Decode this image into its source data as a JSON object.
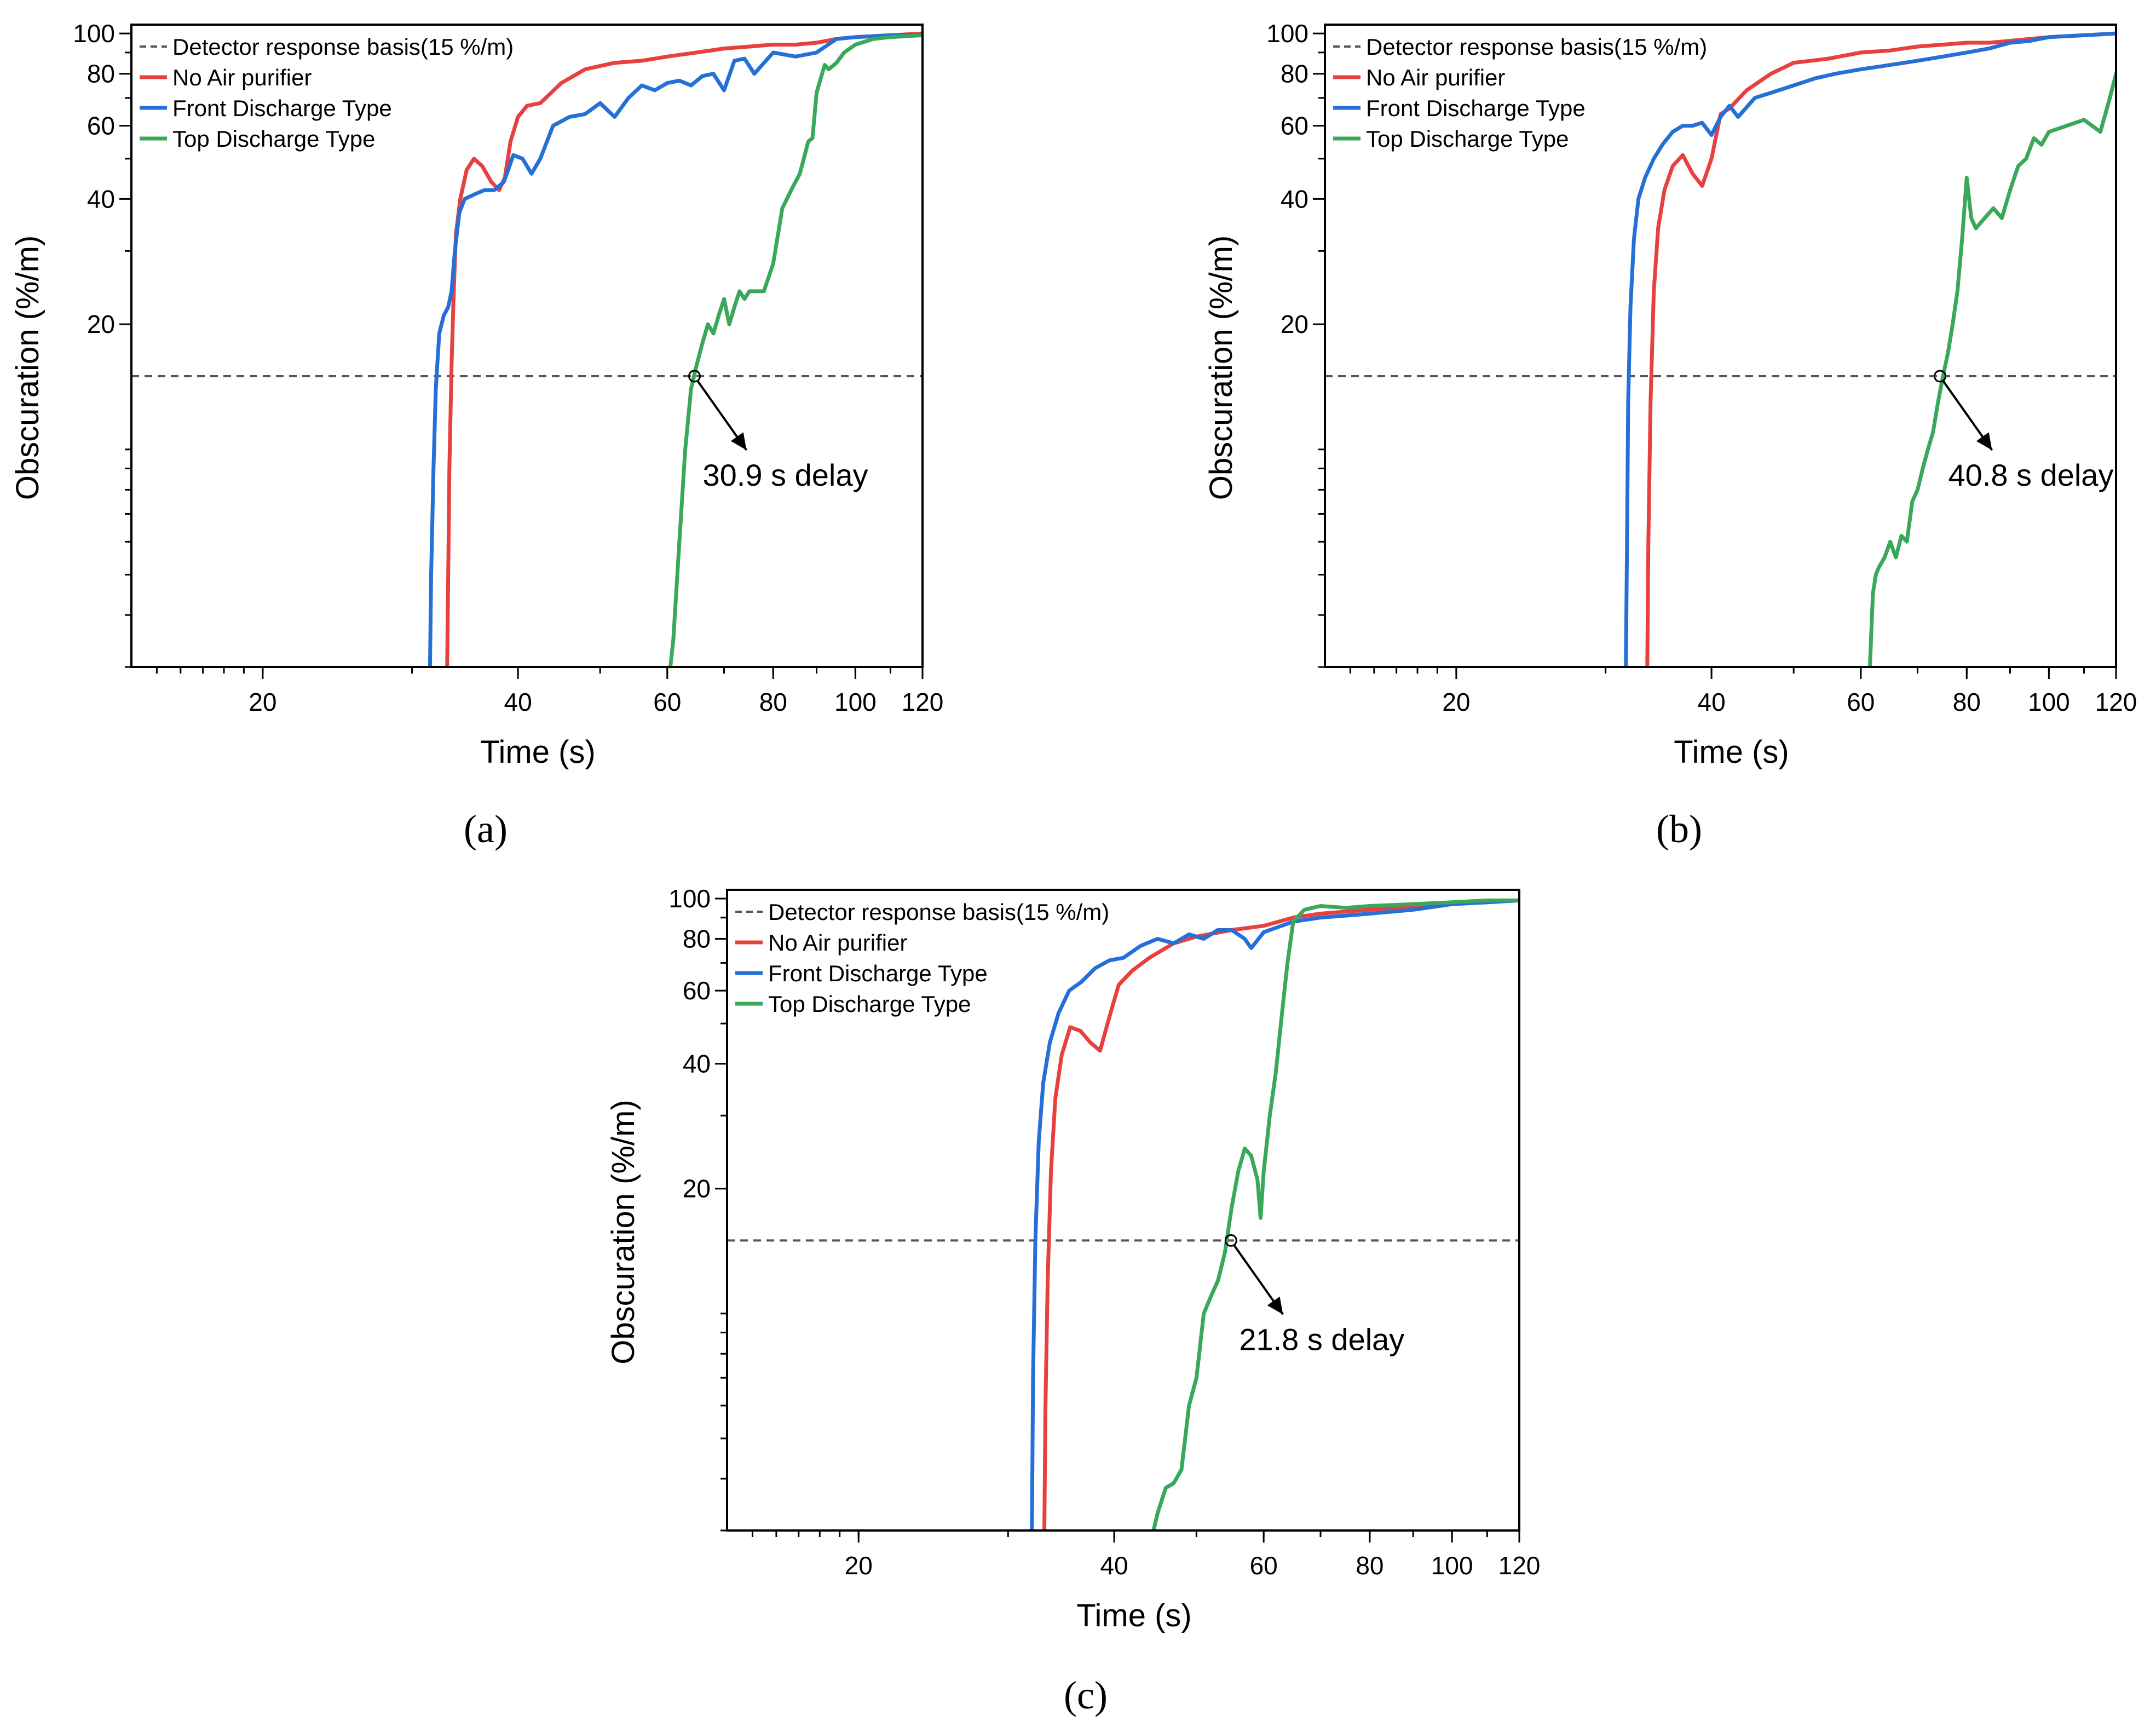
{
  "figure": {
    "panel_labels": [
      "(a)",
      "(b)",
      "(c)"
    ]
  },
  "colors": {
    "threshold": "#555555",
    "no_air_purifier": "#e8403f",
    "front_discharge": "#2470d8",
    "top_discharge": "#3aa85a",
    "axis": "#000000"
  },
  "chart_data": [
    {
      "type": "line",
      "panel": "(a)",
      "xscale": "log",
      "yscale": "log",
      "xlabel": "Time (s)",
      "ylabel": "Obscuration (%/m)",
      "xlim": [
        14,
        120
      ],
      "ylim": [
        3.0,
        105
      ],
      "xticks": [
        20,
        40,
        60,
        80,
        100,
        120
      ],
      "xtick_labels": [
        "20",
        "40",
        "60",
        "80",
        "100",
        "120"
      ],
      "yticks": [
        20,
        40,
        60,
        80,
        100
      ],
      "ytick_labels": [
        "20",
        "40",
        "60",
        "80",
        "100"
      ],
      "legend": [
        "Detector response basis(15 %/m)",
        "No Air purifier",
        "Front Discharge Type",
        "Top Discharge Type"
      ],
      "threshold": 15,
      "annotation": {
        "text": "30.9 s delay",
        "point": [
          64.6,
          15
        ]
      },
      "series": [
        {
          "name": "No Air purifier",
          "x": [
            33.0,
            33.1,
            33.2,
            33.4,
            33.6,
            33.8,
            34.2,
            34.8,
            35.5,
            36.3,
            37.2,
            38.0,
            38.6,
            39.2,
            40.0,
            41.0,
            42.5,
            45,
            48,
            52,
            56,
            60,
            65,
            70,
            75,
            80,
            85,
            90,
            95,
            100,
            110,
            120
          ],
          "y": [
            3.0,
            5,
            9,
            16,
            24,
            33,
            40,
            47,
            50,
            48,
            44,
            42,
            45,
            55,
            63,
            67,
            68,
            76,
            82,
            85,
            86,
            88,
            90,
            92,
            93,
            94,
            94,
            95,
            97,
            98,
            99,
            100
          ]
        },
        {
          "name": "Front Discharge Type",
          "x": [
            31.5,
            31.6,
            31.8,
            32.0,
            32.3,
            32.7,
            33.1,
            33.4,
            33.7,
            34.1,
            34.6,
            35.5,
            36.5,
            37.5,
            38.5,
            39.5,
            40.5,
            41.5,
            42.5,
            44,
            46,
            48,
            50,
            52,
            54,
            56,
            58,
            60,
            62,
            64,
            66,
            68,
            70,
            72,
            74,
            76,
            80,
            85,
            90,
            95,
            100,
            110,
            120
          ],
          "y": [
            3.0,
            5,
            9,
            14,
            19,
            21,
            22,
            24,
            30,
            37,
            40,
            41,
            42,
            42,
            44,
            51,
            50,
            46,
            50,
            60,
            63,
            64,
            68,
            63,
            70,
            75,
            73,
            76,
            77,
            75,
            79,
            80,
            73,
            86,
            87,
            80,
            90,
            88,
            90,
            97,
            98,
            99,
            99
          ]
        },
        {
          "name": "Top Discharge Type",
          "x": [
            60.5,
            61,
            62,
            63,
            64,
            65,
            66,
            67,
            68,
            69,
            70,
            71,
            72,
            73,
            74,
            75,
            76,
            78,
            80,
            82,
            84,
            86,
            88,
            89,
            90,
            92,
            93,
            95,
            97,
            100,
            105,
            110,
            120
          ],
          "y": [
            3.0,
            3.5,
            6,
            10,
            14,
            16,
            18,
            20,
            19,
            21,
            23,
            20,
            22,
            24,
            23,
            24,
            24,
            24,
            28,
            38,
            42,
            46,
            55,
            56,
            72,
            84,
            82,
            85,
            90,
            94,
            97,
            98,
            99
          ]
        }
      ]
    },
    {
      "type": "line",
      "panel": "(b)",
      "xscale": "log",
      "yscale": "log",
      "xlabel": "Time (s)",
      "ylabel": "Obscuration (%/m)",
      "xlim": [
        14,
        120
      ],
      "ylim": [
        3.0,
        105
      ],
      "xticks": [
        20,
        40,
        60,
        80,
        100,
        120
      ],
      "xtick_labels": [
        "20",
        "40",
        "60",
        "80",
        "100",
        "120"
      ],
      "yticks": [
        20,
        40,
        60,
        80,
        100
      ],
      "ytick_labels": [
        "20",
        "40",
        "60",
        "80",
        "100"
      ],
      "legend": [
        "Detector response basis(15 %/m)",
        "No Air purifier",
        "Front Discharge Type",
        "Top Discharge Type"
      ],
      "threshold": 15,
      "annotation": {
        "text": "40.8 s delay",
        "point": [
          74.4,
          15
        ]
      },
      "series": [
        {
          "name": "No Air purifier",
          "x": [
            33.6,
            33.7,
            33.9,
            34.2,
            34.6,
            35.2,
            36.0,
            37.0,
            38.0,
            39.0,
            40.0,
            41.0,
            42.0,
            44,
            47,
            50,
            55,
            60,
            65,
            70,
            75,
            80,
            85,
            90,
            95,
            100,
            110,
            120
          ],
          "y": [
            3.0,
            6,
            13,
            24,
            34,
            42,
            48,
            51,
            46,
            43,
            50,
            64,
            66,
            73,
            80,
            85,
            87,
            90,
            91,
            93,
            94,
            95,
            95,
            96,
            97,
            98,
            99,
            100
          ]
        },
        {
          "name": "Front Discharge Type",
          "x": [
            31.7,
            31.8,
            31.9,
            32.1,
            32.4,
            32.8,
            33.4,
            34.2,
            35.0,
            36.0,
            37.0,
            38.0,
            39.0,
            40.0,
            41.0,
            42.0,
            43.0,
            45,
            47,
            50,
            53,
            56,
            60,
            65,
            70,
            75,
            80,
            85,
            90,
            95,
            100,
            110,
            120
          ],
          "y": [
            3.0,
            6,
            13,
            22,
            32,
            40,
            45,
            50,
            54,
            58,
            60,
            60,
            61,
            57,
            63,
            67,
            63,
            70,
            72,
            75,
            78,
            80,
            82,
            84,
            86,
            88,
            90,
            92,
            95,
            96,
            98,
            99,
            100
          ]
        },
        {
          "name": "Top Discharge Type",
          "x": [
            61.5,
            62,
            62.5,
            63,
            64,
            65,
            66,
            67,
            68,
            69,
            70,
            71,
            72,
            73,
            74,
            75,
            76,
            77,
            78,
            79,
            80,
            81,
            82,
            84,
            86,
            88,
            90,
            92,
            94,
            96,
            98,
            100,
            105,
            110,
            115,
            118,
            120
          ],
          "y": [
            3.0,
            4.5,
            5,
            5.2,
            5.5,
            6,
            5.5,
            6.2,
            6,
            7.5,
            8,
            9,
            10,
            11,
            13,
            15,
            17,
            20,
            24,
            32,
            45,
            36,
            34,
            36,
            38,
            36,
            42,
            48,
            50,
            56,
            54,
            58,
            60,
            62,
            58,
            70,
            80
          ]
        }
      ]
    },
    {
      "type": "line",
      "panel": "(c)",
      "xscale": "log",
      "yscale": "log",
      "xlabel": "Time (s)",
      "ylabel": "Obscuration (%/m)",
      "xlim": [
        14,
        120
      ],
      "ylim": [
        3.0,
        105
      ],
      "xticks": [
        20,
        40,
        60,
        80,
        100,
        120
      ],
      "xtick_labels": [
        "20",
        "40",
        "60",
        "80",
        "100",
        "120"
      ],
      "yticks": [
        20,
        40,
        60,
        80,
        100
      ],
      "ytick_labels": [
        "20",
        "40",
        "60",
        "80",
        "100"
      ],
      "legend": [
        "Detector response basis(15 %/m)",
        "No Air purifier",
        "Front Discharge Type",
        "Top Discharge Type"
      ],
      "threshold": 15,
      "annotation": {
        "text": "21.8 s delay",
        "point": [
          54.9,
          15
        ]
      },
      "series": [
        {
          "name": "No Air purifier",
          "x": [
            33.1,
            33.2,
            33.4,
            33.7,
            34.1,
            34.7,
            35.5,
            36.5,
            37.5,
            38.5,
            39.5,
            40.5,
            42,
            44,
            47,
            50,
            55,
            60,
            65,
            70,
            80,
            90,
            100,
            110,
            120
          ],
          "y": [
            3.0,
            6,
            12,
            22,
            33,
            42,
            49,
            48,
            45,
            43,
            52,
            62,
            67,
            72,
            78,
            81,
            84,
            86,
            90,
            92,
            94,
            96,
            97,
            98,
            99
          ]
        },
        {
          "name": "Front Discharge Type",
          "x": [
            32.0,
            32.1,
            32.3,
            32.6,
            33.0,
            33.6,
            34.4,
            35.4,
            36.6,
            38,
            39.5,
            41,
            43,
            45,
            47,
            49,
            51,
            53,
            55,
            57,
            58,
            60,
            62,
            65,
            70,
            75,
            80,
            90,
            100,
            110,
            120
          ],
          "y": [
            3.0,
            7,
            15,
            26,
            36,
            45,
            53,
            60,
            63,
            68,
            71,
            72,
            77,
            80,
            78,
            82,
            80,
            84,
            84,
            80,
            76,
            83,
            85,
            88,
            90,
            91,
            92,
            94,
            97,
            98,
            99
          ]
        },
        {
          "name": "Top Discharge Type",
          "x": [
            44.5,
            45,
            46,
            47,
            48,
            49,
            50,
            51,
            52,
            53,
            54,
            55,
            56,
            57,
            58,
            59,
            59.5,
            60,
            61,
            62,
            63,
            64,
            65,
            67,
            70,
            75,
            80,
            90,
            100,
            110,
            120
          ],
          "y": [
            3.0,
            3.3,
            3.8,
            3.9,
            4.2,
            6,
            7,
            10,
            11,
            12,
            14,
            18,
            22,
            25,
            24,
            21,
            17,
            22,
            30,
            38,
            52,
            70,
            88,
            94,
            96,
            95,
            96,
            97,
            98,
            99,
            99
          ]
        }
      ]
    }
  ]
}
